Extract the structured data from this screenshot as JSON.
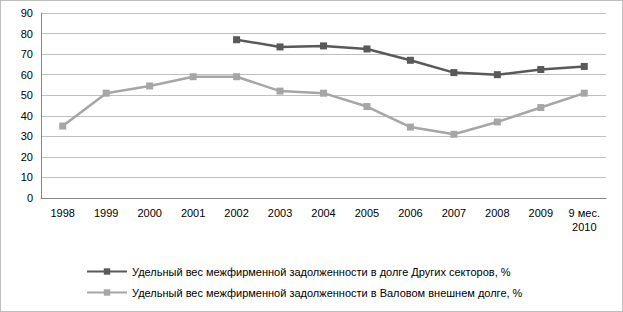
{
  "chart_data": {
    "type": "line",
    "categories": [
      "1998",
      "1999",
      "2000",
      "2001",
      "2002",
      "2003",
      "2004",
      "2005",
      "2006",
      "2007",
      "2008",
      "2009",
      "9 мес.\n2010"
    ],
    "series": [
      {
        "name": "Удельный вес межфирменной задолженности в долге Других секторов, %",
        "color": "#595959",
        "marker": "square",
        "values": [
          null,
          null,
          null,
          null,
          77,
          73.5,
          74,
          72.5,
          67,
          61,
          60,
          62.5,
          64
        ]
      },
      {
        "name": "Удельный вес межфирменной задолженности в Валовом внешнем долге, %",
        "color": "#a6a6a6",
        "marker": "square",
        "values": [
          35,
          51,
          54.5,
          59,
          59,
          52,
          51,
          44.5,
          34.5,
          31,
          37,
          44,
          51
        ]
      }
    ],
    "ylim": [
      0,
      90
    ],
    "yticks": [
      0,
      10,
      20,
      30,
      40,
      50,
      60,
      70,
      80,
      90
    ],
    "grid": true,
    "legend": "bottom"
  }
}
